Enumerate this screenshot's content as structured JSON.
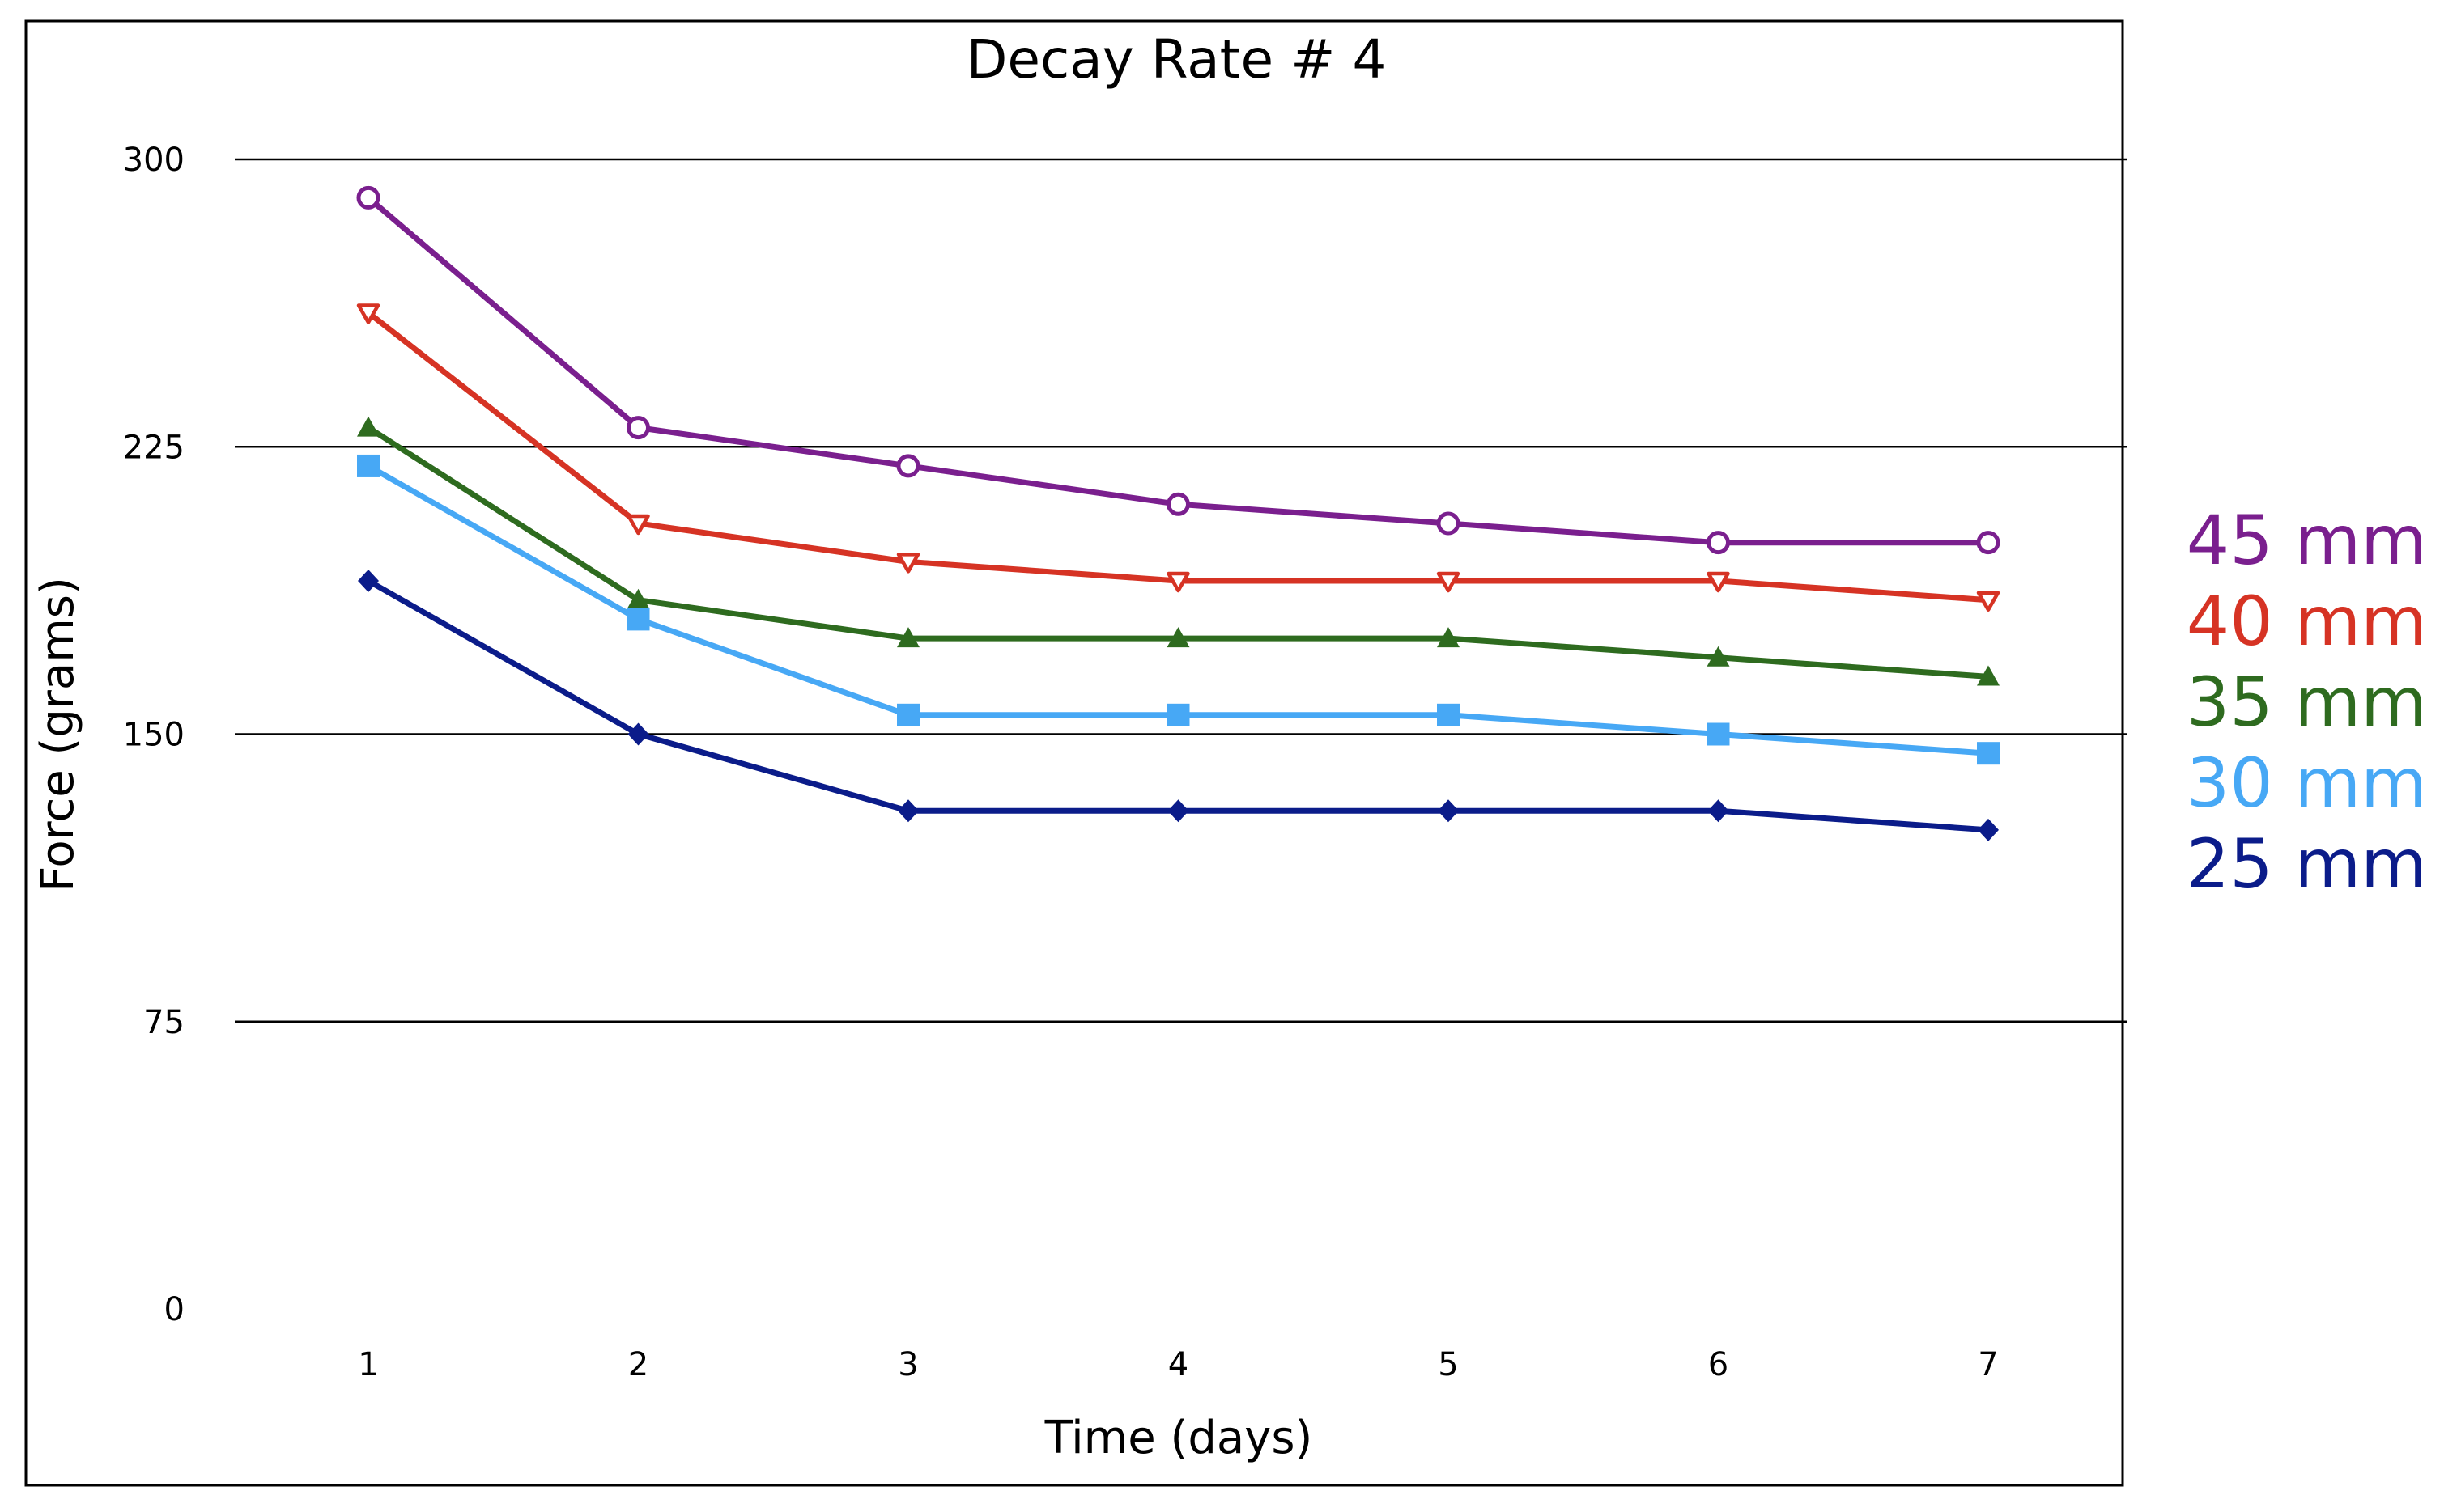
{
  "chart_data": {
    "type": "line",
    "title": "Decay Rate # 4",
    "xlabel": "Time (days)",
    "ylabel": "Force (grams)",
    "categories": [
      "1",
      "2",
      "3",
      "4",
      "5",
      "6",
      "7"
    ],
    "ylim": [
      0,
      300
    ],
    "yticks": [
      0,
      75,
      150,
      225,
      300
    ],
    "ytick_labels": [
      "0",
      "75",
      "150",
      "225",
      "300"
    ],
    "gridlines": [
      75,
      150,
      225,
      300
    ],
    "legend_position": "right",
    "series": [
      {
        "name": "45 mm",
        "label": "45 mm",
        "color": "#7a1f8e",
        "marker": "circle-open",
        "values": [
          290,
          230,
          220,
          210,
          205,
          200,
          200
        ]
      },
      {
        "name": "40 mm",
        "label": "40 mm",
        "color": "#d63324",
        "marker": "triangle-down-open",
        "values": [
          260,
          205,
          195,
          190,
          190,
          190,
          185
        ]
      },
      {
        "name": "35 mm",
        "label": "35 mm",
        "color": "#2e6b1f",
        "marker": "triangle-up-filled",
        "values": [
          230,
          185,
          175,
          175,
          175,
          170,
          165
        ]
      },
      {
        "name": "30 mm",
        "label": "30 mm",
        "color": "#47a8f5",
        "marker": "square-filled",
        "values": [
          220,
          180,
          155,
          155,
          155,
          150,
          145
        ]
      },
      {
        "name": "25 mm",
        "label": "25 mm",
        "color": "#0b1c8a",
        "marker": "diamond-filled",
        "values": [
          190,
          150,
          130,
          130,
          130,
          130,
          125
        ]
      }
    ]
  }
}
